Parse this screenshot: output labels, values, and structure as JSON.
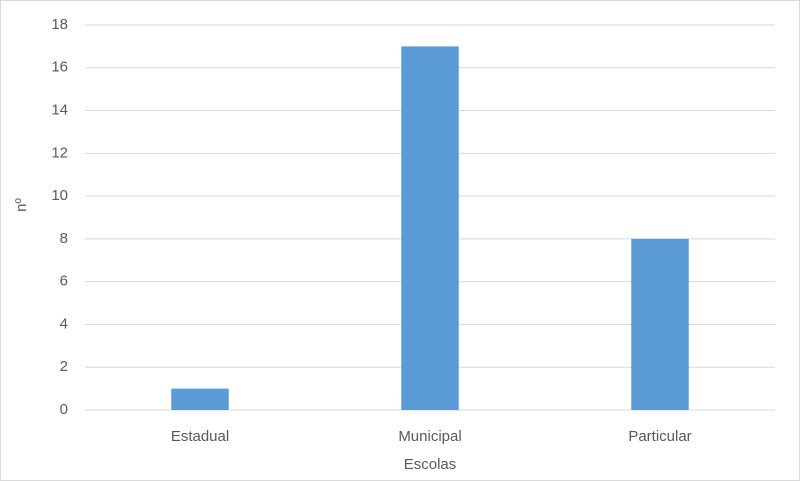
{
  "chart_data": {
    "type": "bar",
    "categories": [
      "Estadual",
      "Municipal",
      "Particular"
    ],
    "values": [
      1,
      17,
      8
    ],
    "color": "#5b9bd5",
    "x_label": "Escolas",
    "y_label": "nº",
    "ylim": [
      0,
      18
    ],
    "yticks": [
      0,
      2,
      4,
      6,
      8,
      10,
      12,
      14,
      16,
      18
    ],
    "grid": true
  }
}
